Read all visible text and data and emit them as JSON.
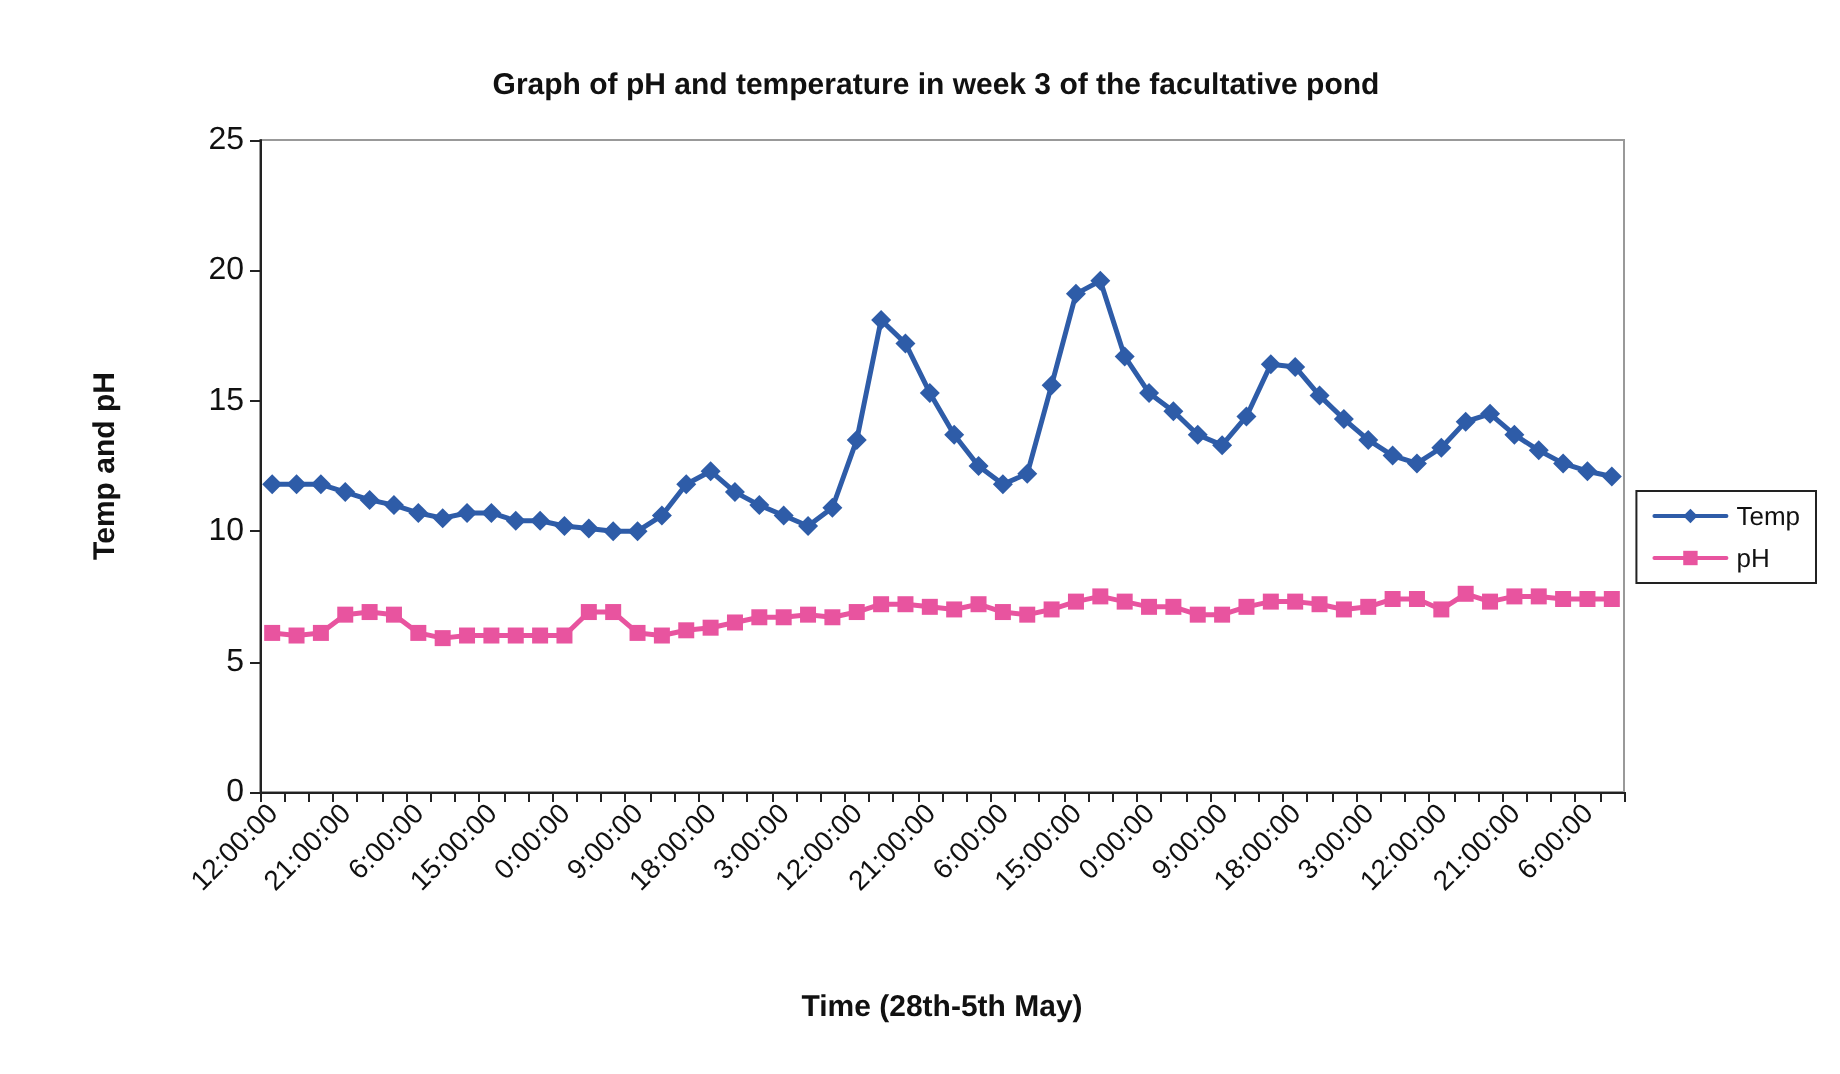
{
  "chart_data": {
    "type": "line",
    "title": "Graph of pH and temperature in week 3 of the facultative pond",
    "xlabel": "Time (28th-5th May)",
    "ylabel": "Temp and pH",
    "categories": [
      "12:00:00",
      null,
      null,
      "21:00:00",
      null,
      null,
      "6:00:00",
      null,
      null,
      "15:00:00",
      null,
      null,
      "0:00:00",
      null,
      null,
      "9:00:00",
      null,
      null,
      "18:00:00",
      null,
      null,
      "3:00:00",
      null,
      null,
      "12:00:00",
      null,
      null,
      "21:00:00",
      null,
      null,
      "6:00:00",
      null,
      null,
      "15:00:00",
      null,
      null,
      "0:00:00",
      null,
      null,
      "9:00:00",
      null,
      null,
      "18:00:00",
      null,
      null,
      "3:00:00",
      null,
      null,
      "12:00:00",
      null,
      null,
      "21:00:00",
      null,
      null,
      "6:00:00",
      null
    ],
    "series": [
      {
        "name": "Temp",
        "color": "#2e5ca8",
        "marker": "diamond",
        "values": [
          11.8,
          11.8,
          11.8,
          11.5,
          11.2,
          11.0,
          10.7,
          10.5,
          10.7,
          10.7,
          10.4,
          10.4,
          10.2,
          10.1,
          10.0,
          10.0,
          10.6,
          11.8,
          12.3,
          11.5,
          11.0,
          10.6,
          10.2,
          10.9,
          13.5,
          18.1,
          17.2,
          15.3,
          13.7,
          12.5,
          11.8,
          12.2,
          15.6,
          19.1,
          19.6,
          16.7,
          15.3,
          14.6,
          13.7,
          13.3,
          14.4,
          16.4,
          16.3,
          15.2,
          14.3,
          13.5,
          12.9,
          12.6,
          13.2,
          14.2,
          14.5,
          13.7,
          13.1,
          12.6,
          12.3,
          12.1
        ]
      },
      {
        "name": "pH",
        "color": "#e8549f",
        "marker": "square",
        "values": [
          6.1,
          6.0,
          6.1,
          6.8,
          6.9,
          6.8,
          6.1,
          5.9,
          6.0,
          6.0,
          6.0,
          6.0,
          6.0,
          6.9,
          6.9,
          6.1,
          6.0,
          6.2,
          6.3,
          6.5,
          6.7,
          6.7,
          6.8,
          6.7,
          6.9,
          7.2,
          7.2,
          7.1,
          7.0,
          7.2,
          6.9,
          6.8,
          7.0,
          7.3,
          7.5,
          7.3,
          7.1,
          7.1,
          6.8,
          6.8,
          7.1,
          7.3,
          7.3,
          7.2,
          7.0,
          7.1,
          7.4,
          7.4,
          7.0,
          7.6,
          7.3,
          7.5,
          7.5,
          7.4,
          7.4,
          7.4
        ]
      }
    ],
    "ylim": [
      0,
      25
    ],
    "yticks": [
      0,
      5,
      10,
      15,
      20,
      25
    ],
    "grid": false,
    "legend": "right",
    "line_style": "solid"
  }
}
